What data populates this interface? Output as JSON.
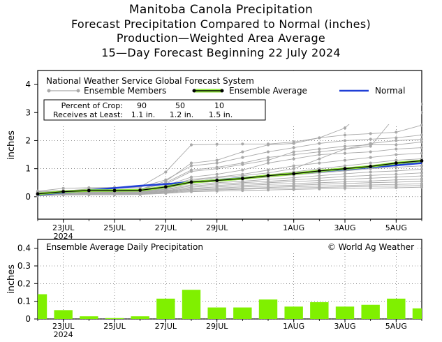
{
  "titles": [
    "Manitoba Canola Precipitation",
    "Forecast Precipitation Compared to Normal (inches)",
    "Production—Weighted Area Average",
    "15—Day Forecast Beginning 22 July 2024"
  ],
  "colors": {
    "ensemble_member": "#a9a9a9",
    "ensemble_average": "#000000",
    "ensemble_average_highlight": "#8ae234",
    "normal": "#1f3fd6",
    "bar": "#80f000",
    "grid": "#444444"
  },
  "top_panel": {
    "source_label": "National Weather Service Global Forecast System",
    "legend": {
      "members": "Ensemble Members",
      "average": "Ensemble Average",
      "normal": "Normal"
    },
    "crop_table": {
      "row1_label": "Percent of Crop:",
      "row1_values": [
        "90",
        "50",
        "10"
      ],
      "row2_label": "Receives at Least:",
      "row2_values": [
        "1.1 in.",
        "1.2 in.",
        "1.5 in."
      ]
    },
    "ylabel": "inches"
  },
  "bottom_panel": {
    "label": "Ensemble Average Daily Precipitation",
    "copyright": "© World Ag Weather",
    "ylabel": "inches"
  },
  "x_ticks": [
    {
      "day": 1,
      "label": "23JUL",
      "sub": "2024"
    },
    {
      "day": 3,
      "label": "25JUL",
      "sub": ""
    },
    {
      "day": 5,
      "label": "27JUL",
      "sub": ""
    },
    {
      "day": 7,
      "label": "29JUL",
      "sub": ""
    },
    {
      "day": 10,
      "label": "1AUG",
      "sub": ""
    },
    {
      "day": 12,
      "label": "3AUG",
      "sub": ""
    },
    {
      "day": 14,
      "label": "5AUG",
      "sub": ""
    }
  ],
  "chart_data": [
    {
      "type": "line",
      "title": "Forecast Precipitation Compared to Normal (inches)",
      "ylabel": "inches",
      "xlim": [
        0,
        15
      ],
      "ylim": [
        -0.8,
        4.5
      ],
      "yticks": [
        0,
        1,
        2,
        3,
        4
      ],
      "grid": true,
      "x": [
        0,
        1,
        2,
        3,
        4,
        5,
        6,
        7,
        8,
        9,
        10,
        11,
        12,
        13,
        14,
        15
      ],
      "ensemble_average": [
        0.1,
        0.18,
        0.22,
        0.22,
        0.23,
        0.35,
        0.52,
        0.58,
        0.65,
        0.75,
        0.82,
        0.92,
        1.0,
        1.08,
        1.2,
        1.28
      ],
      "normal": [
        0.07,
        0.15,
        0.23,
        0.31,
        0.39,
        0.45,
        0.52,
        0.6,
        0.67,
        0.75,
        0.82,
        0.9,
        0.97,
        1.05,
        1.12,
        1.2
      ],
      "ensemble_members": [
        [
          0.2,
          0.3,
          0.32,
          0.33,
          0.35,
          0.88,
          1.85,
          1.87,
          1.88,
          1.88,
          1.95,
          2.1,
          2.45,
          3.28,
          3.3,
          3.3
        ],
        [
          0.15,
          0.2,
          0.22,
          0.25,
          0.27,
          0.55,
          1.2,
          1.3,
          1.6,
          1.85,
          1.9,
          2.1,
          2.2,
          2.25,
          2.3,
          2.55
        ],
        [
          0.18,
          0.22,
          0.25,
          0.26,
          0.28,
          0.45,
          0.9,
          1.0,
          1.15,
          1.3,
          1.6,
          1.7,
          1.8,
          1.85,
          1.85,
          1.95
        ],
        [
          0.12,
          0.18,
          0.2,
          0.2,
          0.22,
          0.4,
          0.7,
          0.8,
          0.95,
          1.2,
          1.35,
          1.5,
          1.55,
          1.6,
          1.7,
          1.75
        ],
        [
          0.15,
          0.2,
          0.22,
          0.23,
          0.25,
          0.38,
          0.62,
          0.7,
          0.8,
          0.95,
          1.1,
          1.2,
          1.3,
          1.4,
          1.5,
          1.55
        ],
        [
          0.1,
          0.16,
          0.18,
          0.19,
          0.2,
          0.32,
          0.52,
          0.6,
          0.68,
          0.78,
          0.88,
          1.0,
          1.1,
          1.2,
          1.3,
          1.35
        ],
        [
          0.1,
          0.15,
          0.17,
          0.18,
          0.19,
          0.3,
          0.48,
          0.55,
          0.62,
          0.7,
          0.78,
          0.85,
          0.92,
          1.0,
          1.05,
          1.1
        ],
        [
          0.08,
          0.14,
          0.16,
          0.17,
          0.18,
          0.27,
          0.42,
          0.5,
          0.55,
          0.62,
          0.68,
          0.75,
          0.82,
          0.88,
          0.92,
          0.98
        ],
        [
          0.08,
          0.12,
          0.14,
          0.15,
          0.16,
          0.25,
          0.38,
          0.45,
          0.5,
          0.55,
          0.6,
          0.66,
          0.72,
          0.76,
          0.8,
          0.85
        ],
        [
          0.07,
          0.11,
          0.13,
          0.14,
          0.15,
          0.22,
          0.34,
          0.4,
          0.45,
          0.5,
          0.54,
          0.58,
          0.62,
          0.66,
          0.7,
          0.74
        ],
        [
          0.06,
          0.1,
          0.12,
          0.12,
          0.13,
          0.2,
          0.3,
          0.35,
          0.4,
          0.44,
          0.47,
          0.5,
          0.53,
          0.56,
          0.6,
          0.63
        ],
        [
          0.05,
          0.09,
          0.1,
          0.11,
          0.12,
          0.18,
          0.27,
          0.31,
          0.35,
          0.38,
          0.41,
          0.44,
          0.47,
          0.5,
          0.52,
          0.55
        ],
        [
          0.05,
          0.08,
          0.09,
          0.1,
          0.1,
          0.16,
          0.24,
          0.27,
          0.3,
          0.33,
          0.36,
          0.38,
          0.4,
          0.42,
          0.44,
          0.46
        ],
        [
          0.04,
          0.07,
          0.08,
          0.09,
          0.09,
          0.14,
          0.21,
          0.24,
          0.27,
          0.29,
          0.31,
          0.33,
          0.35,
          0.37,
          0.38,
          0.4
        ],
        [
          0.03,
          0.06,
          0.07,
          0.07,
          0.08,
          0.12,
          0.18,
          0.2,
          0.22,
          0.24,
          0.26,
          0.28,
          0.3,
          0.31,
          0.32,
          0.34
        ],
        [
          0.1,
          0.2,
          0.28,
          0.3,
          0.34,
          0.6,
          1.1,
          1.2,
          1.4,
          1.6,
          1.75,
          1.9,
          2.0,
          2.05,
          2.1,
          2.2
        ],
        [
          0.08,
          0.15,
          0.2,
          0.22,
          0.24,
          0.5,
          0.95,
          1.05,
          1.2,
          1.4,
          1.5,
          1.6,
          1.7,
          1.8,
          2.9,
          3.0
        ],
        [
          0.12,
          0.18,
          0.2,
          0.21,
          0.22,
          0.36,
          0.58,
          0.68,
          0.75,
          0.85,
          1.0,
          1.35,
          1.7,
          1.9,
          2.0,
          2.05
        ]
      ]
    },
    {
      "type": "bar",
      "title": "Ensemble Average Daily Precipitation",
      "ylabel": "inches",
      "xlim": [
        0,
        15
      ],
      "ylim": [
        0,
        0.45
      ],
      "yticks": [
        0,
        0.1,
        0.2,
        0.3,
        0.4
      ],
      "x": [
        0,
        1,
        2,
        3,
        4,
        5,
        6,
        7,
        8,
        9,
        10,
        11,
        12,
        13,
        14,
        15
      ],
      "values": [
        0.14,
        0.05,
        0.015,
        0.005,
        0.015,
        0.115,
        0.165,
        0.065,
        0.065,
        0.11,
        0.07,
        0.095,
        0.07,
        0.08,
        0.115,
        0.06
      ]
    }
  ]
}
